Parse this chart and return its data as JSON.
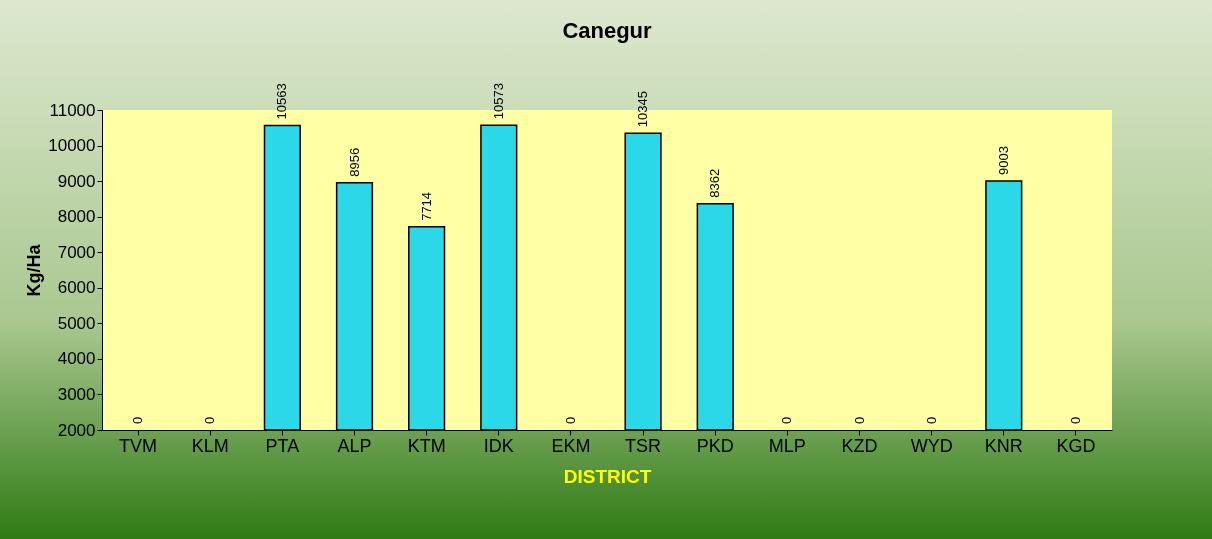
{
  "chart_data": {
    "type": "bar",
    "title": "Canegur",
    "xlabel": "DISTRICT",
    "ylabel": "Kg/Ha",
    "categories": [
      "TVM",
      "KLM",
      "PTA",
      "ALP",
      "KTM",
      "IDK",
      "EKM",
      "TSR",
      "PKD",
      "MLP",
      "KZD",
      "WYD",
      "KNR",
      "KGD"
    ],
    "values": [
      null,
      null,
      10563,
      8956,
      7714,
      10573,
      null,
      10345,
      8362,
      null,
      null,
      null,
      9003,
      null
    ],
    "value_labels": [
      "0",
      "0",
      "10563",
      "8956",
      "7714",
      "10573",
      "0",
      "10345",
      "8362",
      "0",
      "0",
      "0",
      "9003",
      "0"
    ],
    "color": "#2ad8e8",
    "ylim": [
      2000,
      11000
    ],
    "yticks": [
      2000,
      3000,
      4000,
      5000,
      6000,
      7000,
      8000,
      9000,
      10000,
      11000
    ],
    "grid": false
  }
}
